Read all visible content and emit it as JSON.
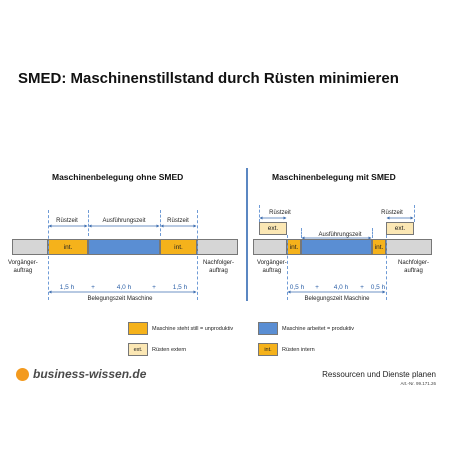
{
  "title": "SMED: Maschinenstillstand durch Rüsten minimieren",
  "left": {
    "heading": "Maschinenbelegung ohne SMED",
    "ruestzeit_label": "Rüstzeit",
    "ausfuehrung_label": "Ausführungszeit",
    "int_label": "int.",
    "vorgaenger_line1": "Vorgänger-",
    "vorgaenger_line2": "auftrag",
    "nachfolger_line1": "Nachfolger-",
    "nachfolger_line2": "auftrag",
    "time_1": "1,5 h",
    "plus_1": "+",
    "time_2": "4,0 h",
    "plus_2": "+",
    "time_3": "1,5 h",
    "belegungszeit": "Belegungszeit Maschine"
  },
  "right": {
    "heading": "Maschinenbelegung mit SMED",
    "ruestzeit_label": "Rüstzeit",
    "ausfuehrung_label": "Ausführungszeit",
    "int_label": "int.",
    "ext_label": "ext.",
    "vorgaenger_line1": "Vorgänger-",
    "vorgaenger_line2": "auftrag",
    "nachfolger_line1": "Nachfolger-",
    "nachfolger_line2": "auftrag",
    "time_1": "0,5 h",
    "plus_1": "+",
    "time_2": "4,0 h",
    "plus_2": "+",
    "time_3": "0,5 h",
    "belegungszeit": "Belegungszeit Maschine"
  },
  "legend": {
    "still": "Maschine steht still = unproduktiv",
    "arbeitet": "Maschine arbeitet = produktiv",
    "extern": "Rüsten extern",
    "intern": "Rüsten intern",
    "ext_swatch": "ext.",
    "int_swatch": "int."
  },
  "footer": {
    "brand": "business-wissen.de",
    "subtitle": "Ressourcen und Dienste planen",
    "article": "Art.-Nr. 99.171.26"
  },
  "colors": {
    "idle": "#d6d6d6",
    "productive": "#5a8ed3",
    "setup": "#f5b21b",
    "external": "#fbe7b4",
    "accent": "#5b87c2",
    "brand": "#f39a1e"
  }
}
